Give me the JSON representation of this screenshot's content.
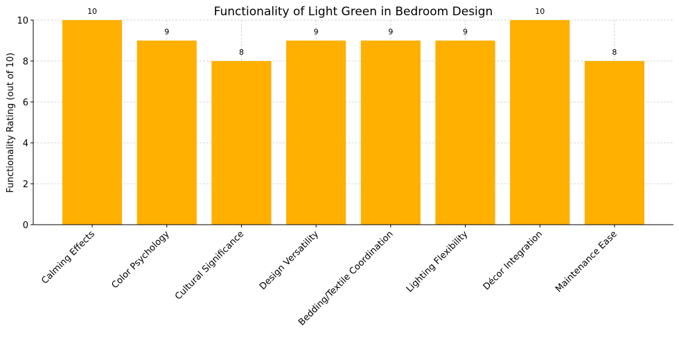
{
  "chart_data": {
    "type": "bar",
    "title": "Functionality of Light Green in Bedroom Design",
    "y_label": "Functionality Rating (out of 10)",
    "categories": [
      "Calming Effects",
      "Color Psychology",
      "Cultural Significance",
      "Design Versatility",
      "Bedding/Textile Coordination",
      "Lighting Flexibility",
      "Décor Integration",
      "Maintenance Ease"
    ],
    "values": [
      10,
      9,
      8,
      9,
      9,
      9,
      10,
      8
    ],
    "color": "#ffb000",
    "ylim": [
      0,
      10
    ],
    "yticks": [
      0,
      2,
      4,
      6,
      8,
      10
    ],
    "grid": true
  }
}
